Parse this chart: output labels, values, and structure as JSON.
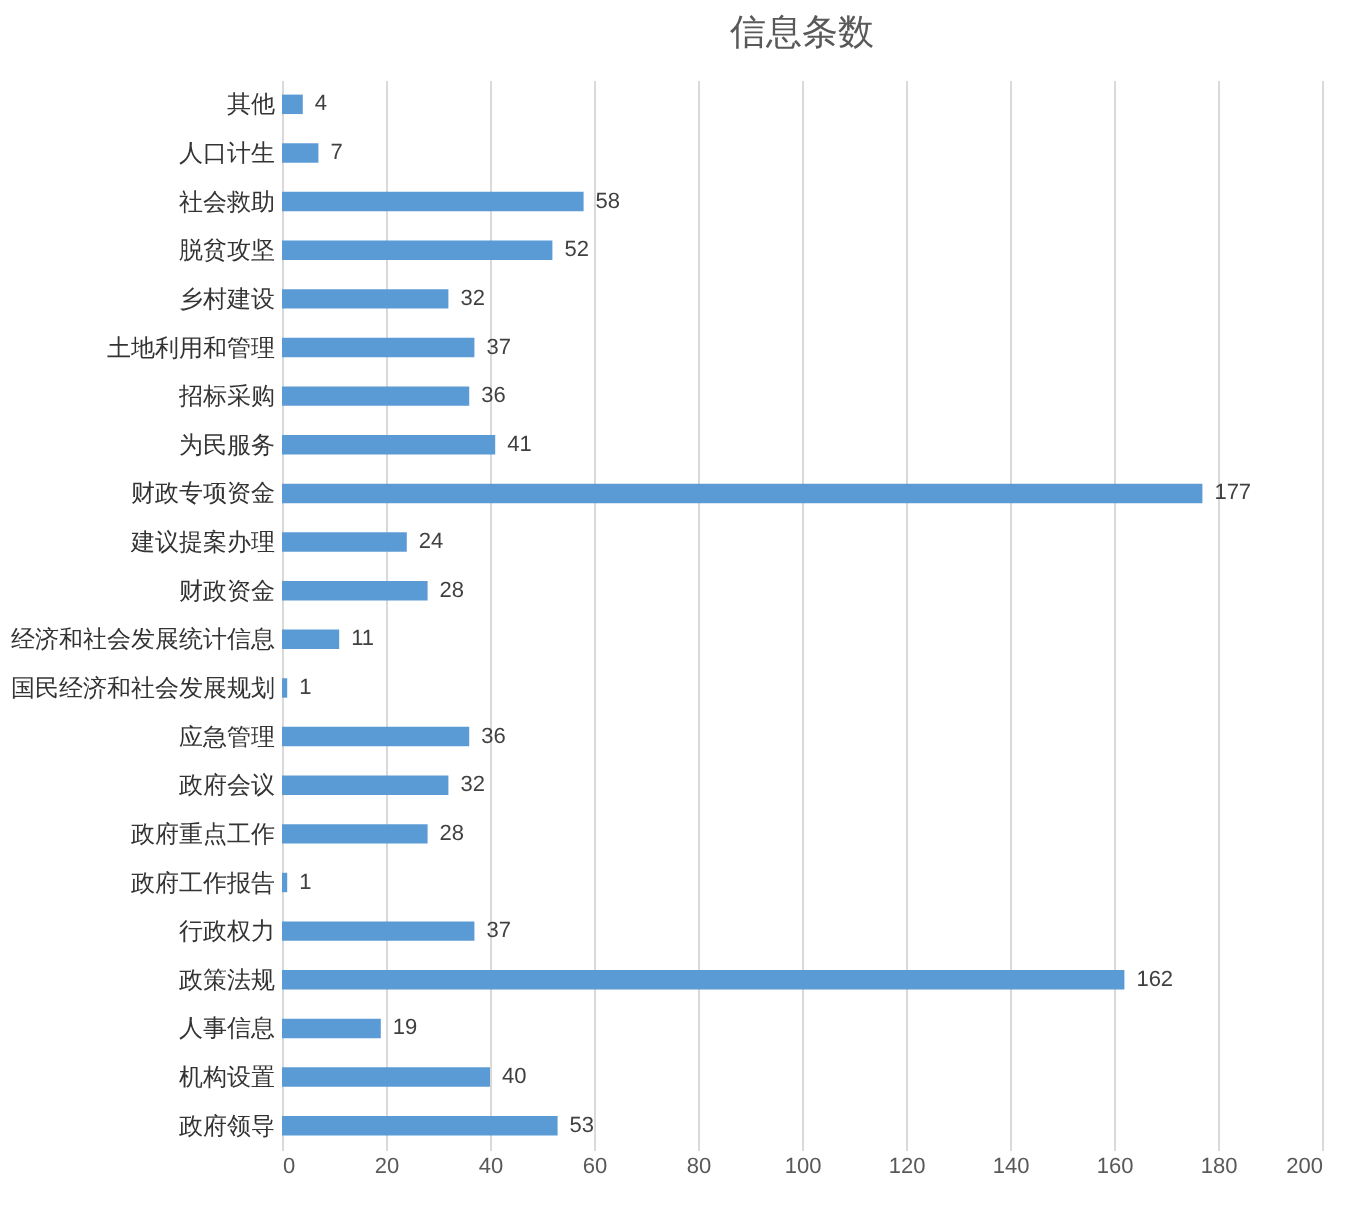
{
  "chart_data": {
    "type": "bar",
    "title": "信息条数",
    "orientation": "horizontal",
    "categories": [
      "其他",
      "人口计生",
      "社会救助",
      "脱贫攻坚",
      "乡村建设",
      "土地利用和管理",
      "招标采购",
      "为民服务",
      "财政专项资金",
      "建议提案办理",
      "财政资金",
      "经济和社会发展统计信息",
      "国民经济和社会发展规划",
      "应急管理",
      "政府会议",
      "政府重点工作",
      "政府工作报告",
      "行政权力",
      "政策法规",
      "人事信息",
      "机构设置",
      "政府领导"
    ],
    "values": [
      4,
      7,
      58,
      52,
      32,
      37,
      36,
      41,
      177,
      24,
      28,
      11,
      1,
      36,
      32,
      28,
      1,
      37,
      162,
      19,
      40,
      53
    ],
    "color": "#5b9bd5",
    "xlim": [
      0,
      200
    ],
    "xticks": [
      0,
      20,
      40,
      60,
      80,
      100,
      120,
      140,
      160,
      180,
      200
    ],
    "grid": "x",
    "data_labels": true
  }
}
